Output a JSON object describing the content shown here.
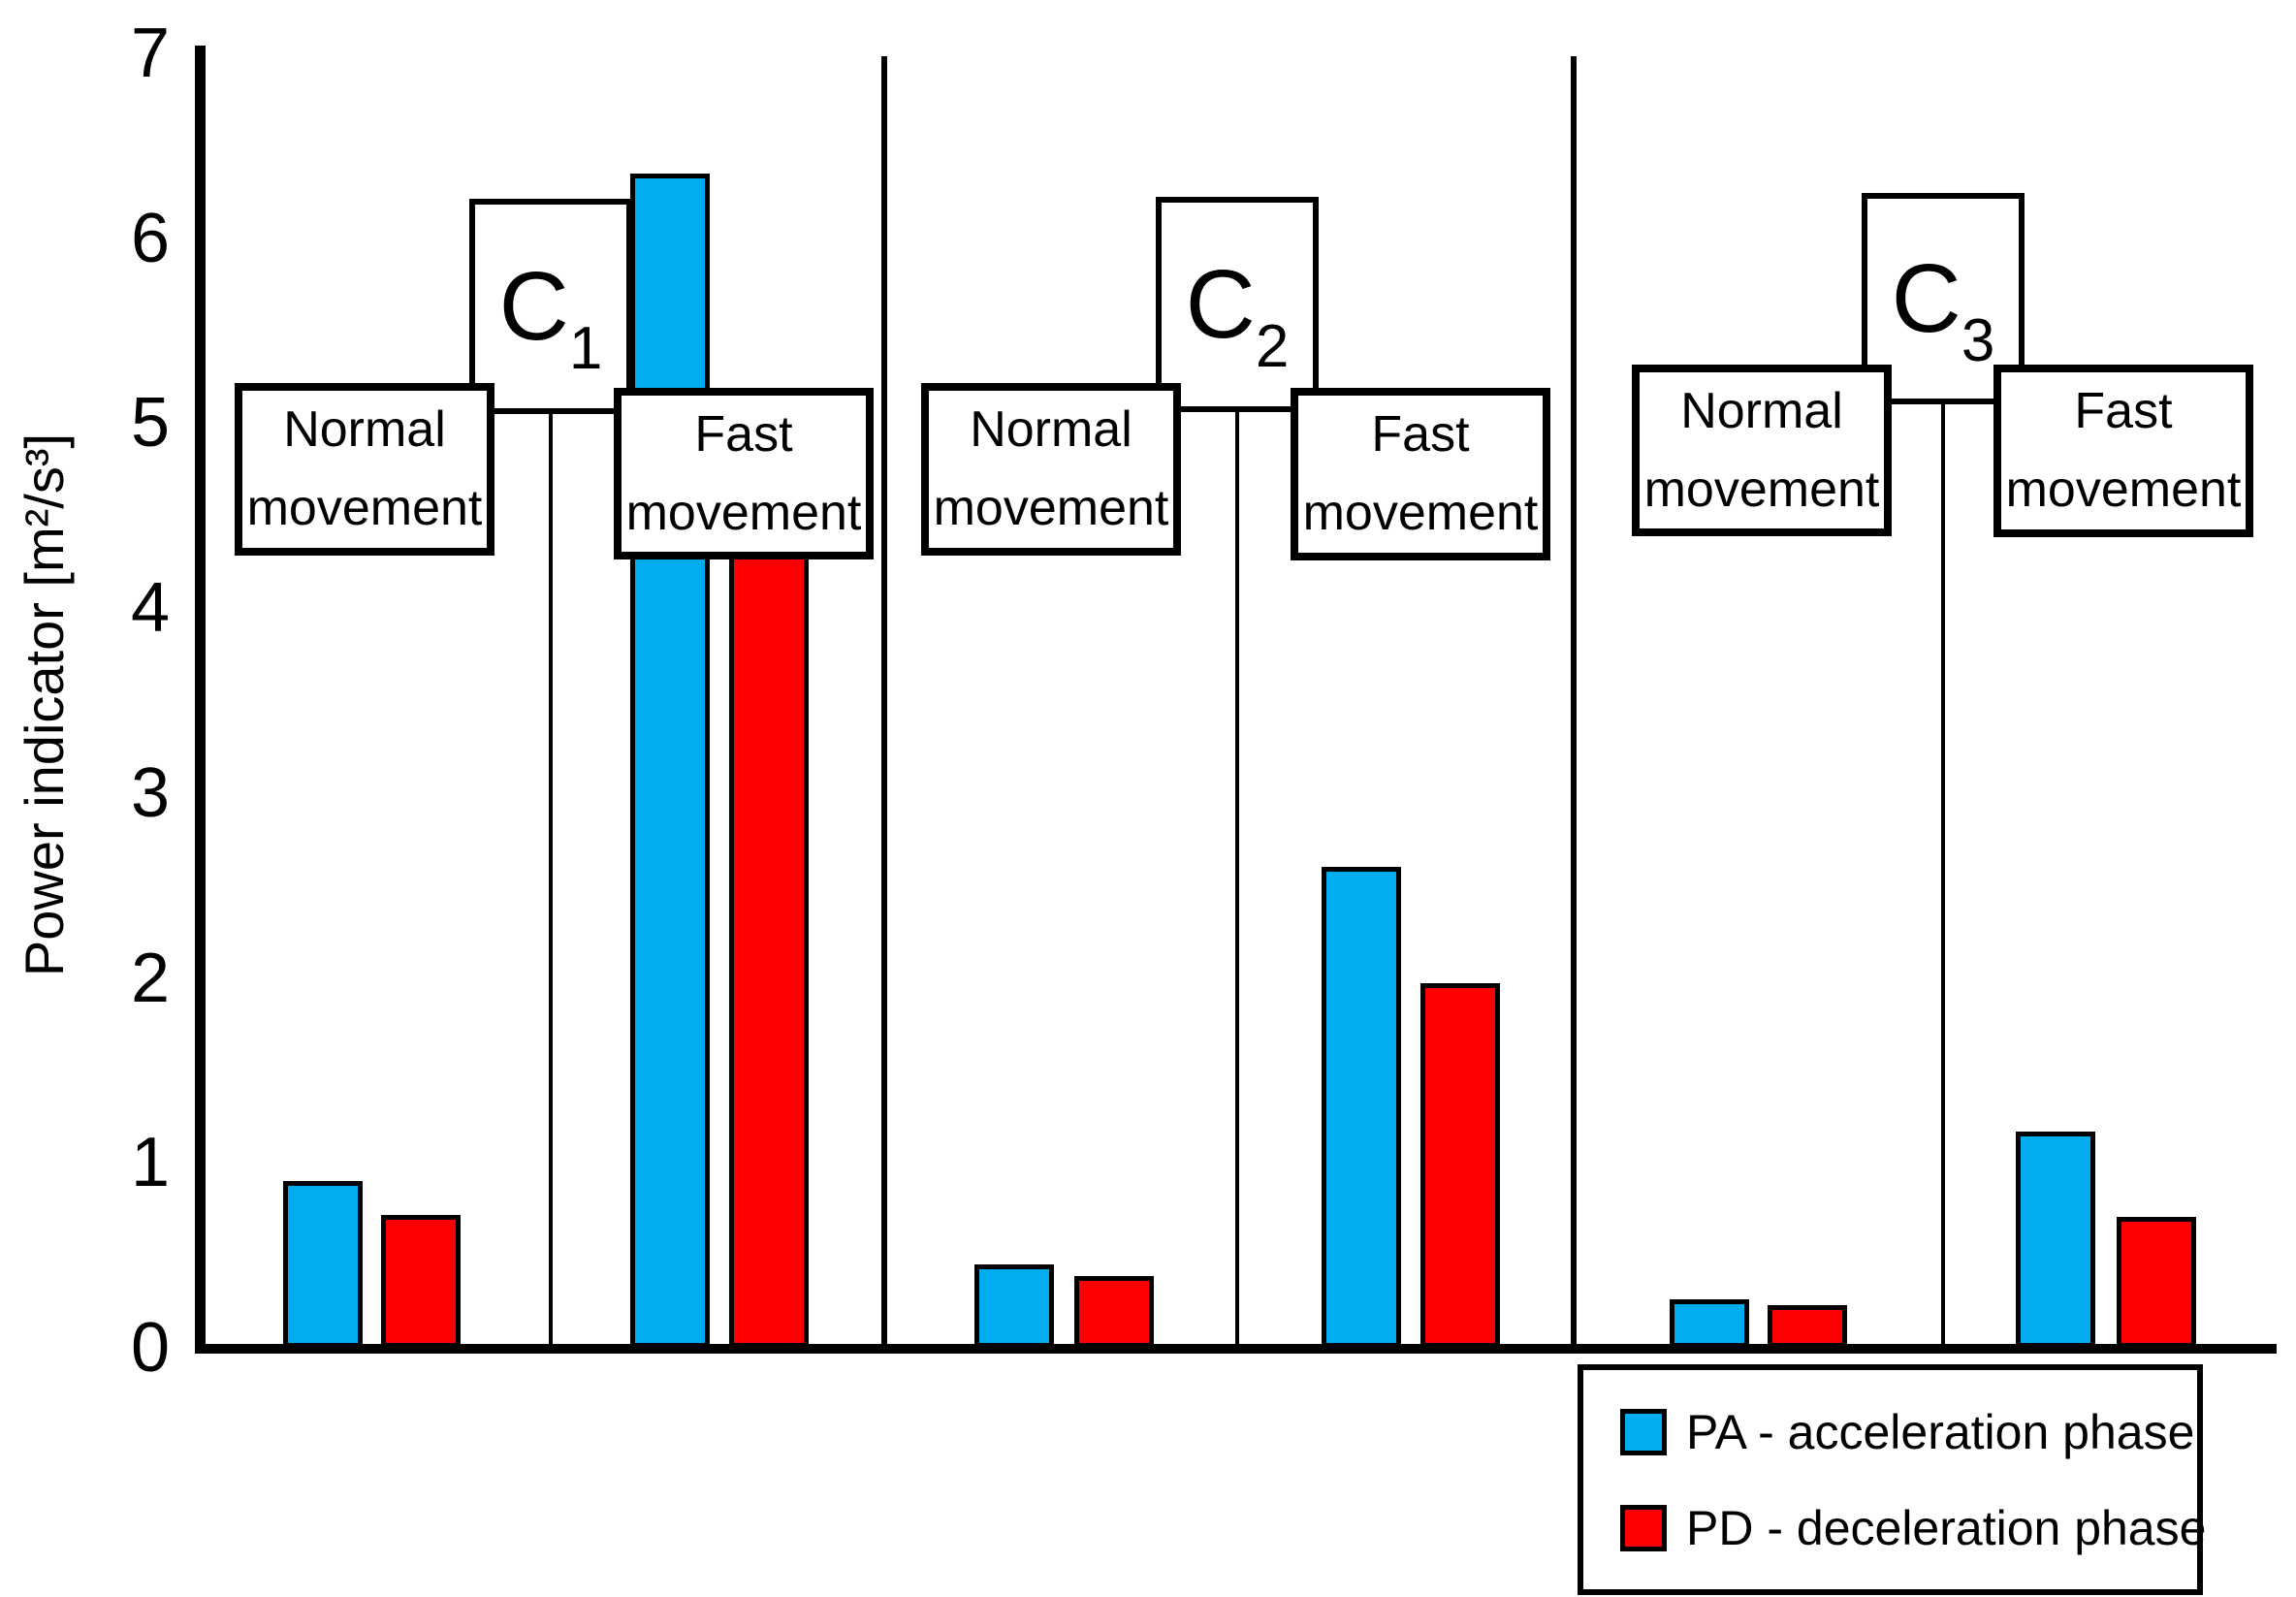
{
  "figure": {
    "background": "#ffffff",
    "axis_color": "#000000"
  },
  "chart_data": {
    "type": "bar",
    "title": "",
    "xlabel": "",
    "ylabel": "Power indicator [m²/s³]",
    "ylim": [
      0,
      7
    ],
    "yticks": [
      0,
      1,
      2,
      3,
      4,
      5,
      6,
      7
    ],
    "grid": false,
    "legend_position": "bottom-right",
    "series": [
      {
        "key": "PA",
        "name": "PA - acceleration phase",
        "color": "#00AEEF"
      },
      {
        "key": "PD",
        "name": "PD - deceleration phase",
        "color": "#FE0000"
      }
    ],
    "groups": [
      {
        "label": "C",
        "subscript": "1",
        "conditions": [
          {
            "line1": "Normal",
            "line2": "movement",
            "values": {
              "PA": 0.9,
              "PD": 0.72
            }
          },
          {
            "line1": "Fast",
            "line2": "movement",
            "values": {
              "PA": 6.35,
              "PD": 4.82
            }
          }
        ]
      },
      {
        "label": "C",
        "subscript": "2",
        "conditions": [
          {
            "line1": "Normal",
            "line2": "movement",
            "values": {
              "PA": 0.45,
              "PD": 0.39
            }
          },
          {
            "line1": "Fast",
            "line2": "movement",
            "values": {
              "PA": 2.6,
              "PD": 1.97
            }
          }
        ]
      },
      {
        "label": "C",
        "subscript": "3",
        "conditions": [
          {
            "line1": "Normal",
            "line2": "movement",
            "values": {
              "PA": 0.26,
              "PD": 0.23
            }
          },
          {
            "line1": "Fast",
            "line2": "movement",
            "values": {
              "PA": 1.17,
              "PD": 0.71
            }
          }
        ]
      }
    ]
  }
}
